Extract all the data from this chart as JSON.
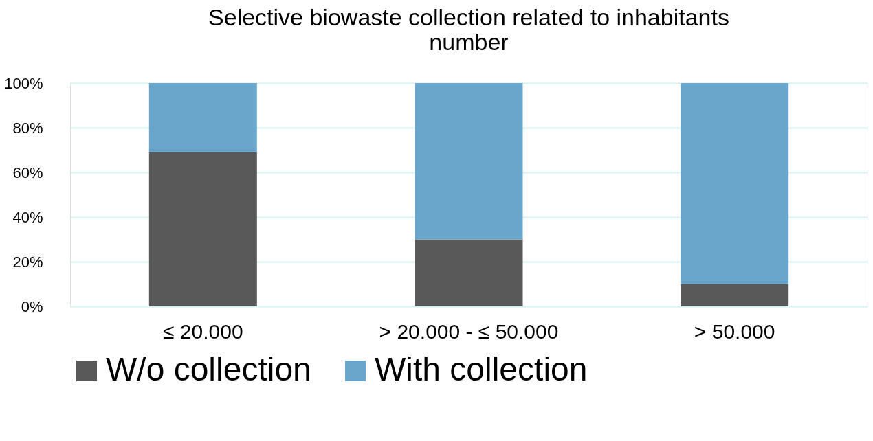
{
  "chart_data": {
    "type": "bar",
    "stacked": true,
    "title": "Selective biowaste collection related to inhabitants number",
    "categories": [
      "≤ 20.000",
      "> 20.000 - ≤ 50.000",
      "> 50.000"
    ],
    "series": [
      {
        "name": "W/o collection",
        "color": "#595959",
        "values": [
          69,
          30,
          10
        ]
      },
      {
        "name": "With collection",
        "color": "#6aa5cb",
        "values": [
          31,
          70,
          90
        ]
      }
    ],
    "ylim": [
      0,
      100
    ],
    "yticks": [
      {
        "value": 0,
        "label": "0%"
      },
      {
        "value": 20,
        "label": "20%"
      },
      {
        "value": 40,
        "label": "40%"
      },
      {
        "value": 60,
        "label": "60%"
      },
      {
        "value": 80,
        "label": "80%"
      },
      {
        "value": 100,
        "label": "100%"
      }
    ],
    "grid": "y",
    "legend": "bottom"
  }
}
